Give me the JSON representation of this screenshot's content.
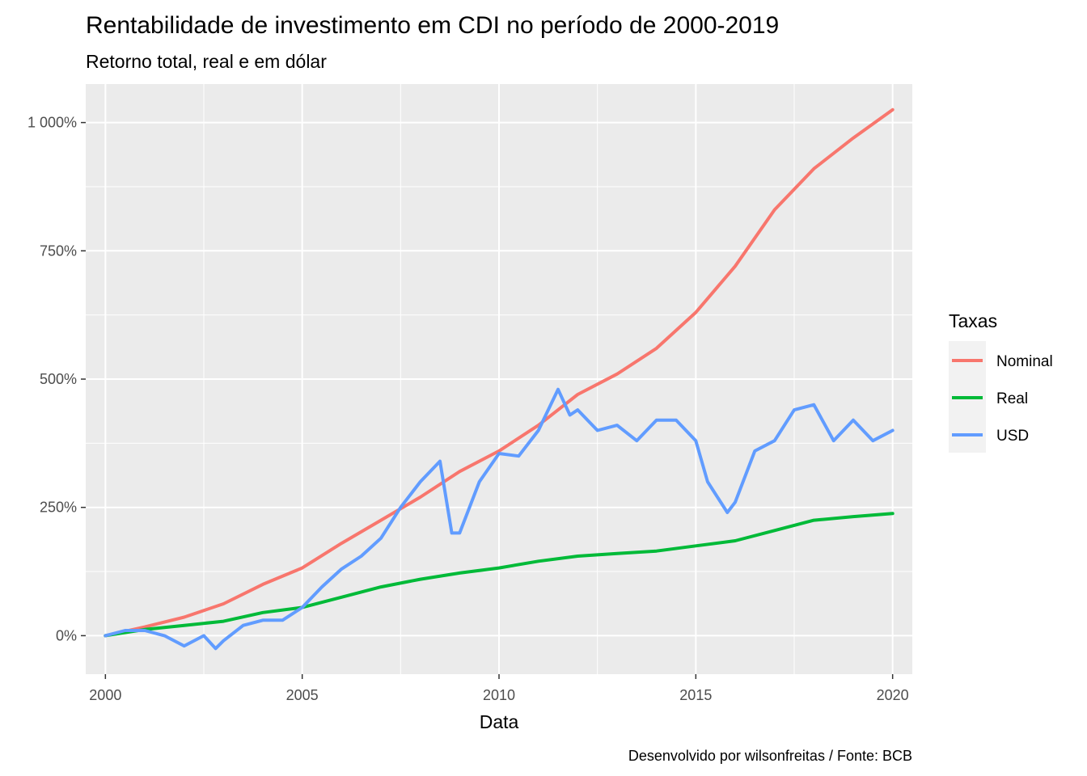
{
  "chart_data": {
    "type": "line",
    "title": "Rentabilidade de investimento em CDI no período de 2000-2019",
    "subtitle": "Retorno total, real e em dólar",
    "xlabel": "Data",
    "ylabel": "",
    "caption": "Desenvolvido por wilsonfreitas / Fonte: BCB",
    "x_ticks": [
      "2000",
      "2005",
      "2010",
      "2015",
      "2020"
    ],
    "y_ticks": [
      "0%",
      "250%",
      "500%",
      "750%",
      "1 000%"
    ],
    "y_tick_values": [
      0,
      250,
      500,
      750,
      1000
    ],
    "xlim": [
      1999.5,
      2020.5
    ],
    "ylim": [
      -75,
      1075
    ],
    "grid": true,
    "legend_title": "Taxas",
    "legend_position": "right",
    "series": [
      {
        "name": "Nominal",
        "color": "#F8766D",
        "x": [
          2000,
          2001,
          2002,
          2003,
          2004,
          2005,
          2006,
          2007,
          2008,
          2009,
          2010,
          2011,
          2012,
          2013,
          2014,
          2015,
          2016,
          2017,
          2018,
          2019,
          2020
        ],
        "values": [
          0,
          17,
          36,
          62,
          100,
          132,
          180,
          225,
          270,
          320,
          360,
          410,
          470,
          510,
          560,
          630,
          720,
          830,
          910,
          970,
          1025
        ]
      },
      {
        "name": "Real",
        "color": "#00BA38",
        "x": [
          2000,
          2001,
          2002,
          2003,
          2004,
          2005,
          2006,
          2007,
          2008,
          2009,
          2010,
          2011,
          2012,
          2013,
          2014,
          2015,
          2016,
          2017,
          2018,
          2019,
          2020
        ],
        "values": [
          0,
          12,
          20,
          28,
          45,
          55,
          75,
          95,
          110,
          122,
          132,
          145,
          155,
          160,
          165,
          175,
          185,
          205,
          225,
          232,
          238
        ]
      },
      {
        "name": "USD",
        "color": "#619CFF",
        "x": [
          2000,
          2000.5,
          2001,
          2001.5,
          2002,
          2002.5,
          2002.8,
          2003,
          2003.5,
          2004,
          2004.5,
          2005,
          2005.5,
          2006,
          2006.5,
          2007,
          2007.5,
          2008,
          2008.5,
          2008.8,
          2009,
          2009.5,
          2010,
          2010.5,
          2011,
          2011.5,
          2011.8,
          2012,
          2012.5,
          2013,
          2013.5,
          2014,
          2014.5,
          2015,
          2015.3,
          2015.8,
          2016,
          2016.5,
          2017,
          2017.5,
          2018,
          2018.5,
          2019,
          2019.5,
          2020
        ],
        "values": [
          0,
          10,
          10,
          0,
          -20,
          0,
          -25,
          -10,
          20,
          30,
          30,
          55,
          95,
          130,
          155,
          190,
          250,
          300,
          340,
          200,
          200,
          300,
          355,
          350,
          400,
          480,
          430,
          440,
          400,
          410,
          380,
          420,
          420,
          380,
          300,
          240,
          260,
          360,
          380,
          440,
          450,
          380,
          420,
          380,
          400
        ]
      }
    ]
  }
}
